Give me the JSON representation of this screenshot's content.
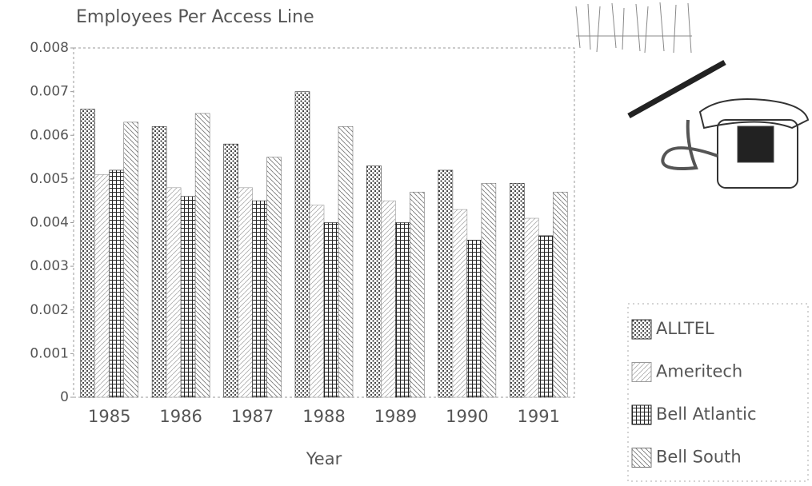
{
  "chart_data": {
    "type": "bar",
    "title": "Employees Per Access Line",
    "x_label": "Year",
    "categories": [
      "1985",
      "1986",
      "1987",
      "1988",
      "1989",
      "1990",
      "1991"
    ],
    "series": [
      {
        "name": "ALLTEL",
        "color": "#333333",
        "values": [
          0.0066,
          0.0062,
          0.0058,
          0.007,
          0.0053,
          0.0052,
          0.0049
        ]
      },
      {
        "name": "Ameritech",
        "color": "#9a9a9a",
        "values": [
          0.0051,
          0.0048,
          0.0048,
          0.0044,
          0.0045,
          0.0043,
          0.0041
        ]
      },
      {
        "name": "Bell Atlantic",
        "color": "#222222",
        "values": [
          0.0052,
          0.0046,
          0.0045,
          0.004,
          0.004,
          0.0036,
          0.0037
        ]
      },
      {
        "name": "Bell South",
        "color": "#777777",
        "values": [
          0.0063,
          0.0065,
          0.0055,
          0.0062,
          0.0047,
          0.0049,
          0.0047
        ]
      }
    ],
    "ylim": [
      0,
      0.008
    ],
    "yticks": [
      0,
      0.001,
      0.002,
      0.003,
      0.004,
      0.005,
      0.006,
      0.007,
      0.008
    ],
    "legend": "right"
  }
}
